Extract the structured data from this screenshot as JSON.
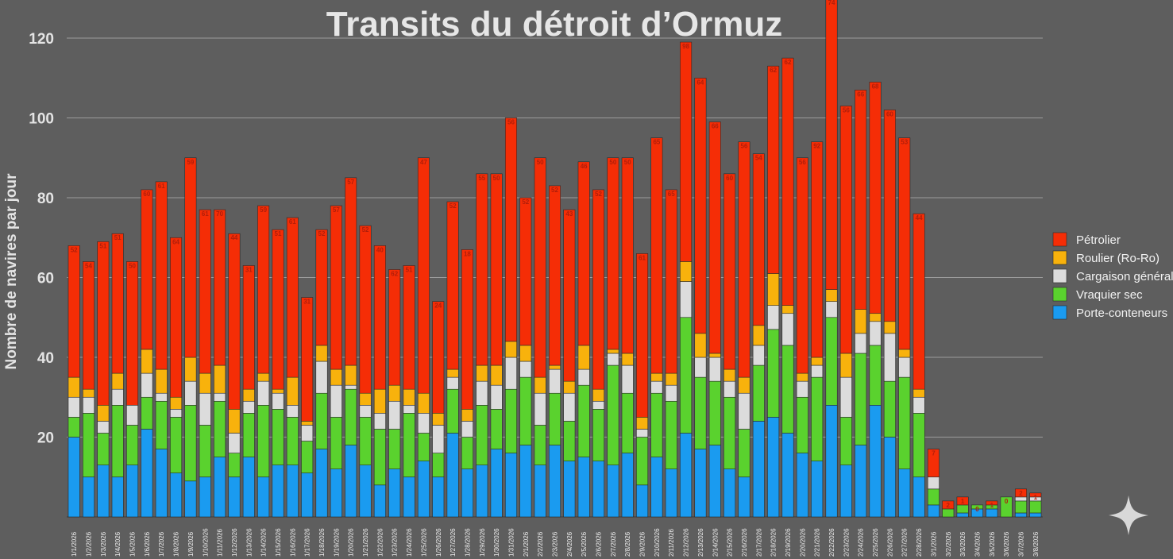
{
  "chart_data": {
    "type": "bar",
    "stacked": true,
    "title": "Transits du détroit d’Ormuz",
    "xlabel": "",
    "ylabel": "Nombre de navires par jour",
    "ylim": [
      0,
      130
    ],
    "yticks": [
      20,
      40,
      60,
      80,
      100,
      120
    ],
    "grid": true,
    "legend_position": "right",
    "categories": [
      "1/1/2026",
      "1/2/2026",
      "1/3/2026",
      "1/4/2026",
      "1/5/2026",
      "1/6/2026",
      "1/7/2026",
      "1/8/2026",
      "1/9/2026",
      "1/10/2026",
      "1/11/2026",
      "1/12/2026",
      "1/13/2026",
      "1/14/2026",
      "1/15/2026",
      "1/16/2026",
      "1/17/2026",
      "1/18/2026",
      "1/19/2026",
      "1/20/2026",
      "1/21/2026",
      "1/22/2026",
      "1/23/2026",
      "1/24/2026",
      "1/25/2026",
      "1/26/2026",
      "1/27/2026",
      "1/28/2026",
      "1/29/2026",
      "1/30/2026",
      "1/31/2026",
      "2/1/2026",
      "2/2/2026",
      "2/3/2026",
      "2/4/2026",
      "2/5/2026",
      "2/6/2026",
      "2/7/2026",
      "2/8/2026",
      "2/9/2026",
      "2/10/2026",
      "2/11/2026",
      "2/12/2026",
      "2/13/2026",
      "2/14/2026",
      "2/15/2026",
      "2/16/2026",
      "2/17/2026",
      "2/18/2026",
      "2/19/2026",
      "2/20/2026",
      "2/21/2026",
      "2/22/2026",
      "2/23/2026",
      "2/24/2026",
      "2/25/2026",
      "2/26/2026",
      "2/27/2026",
      "2/28/2026",
      "3/1/2026",
      "3/2/2026",
      "3/3/2026",
      "3/4/2026",
      "3/5/2026",
      "3/6/2026",
      "3/7/2026",
      "3/8/2026"
    ],
    "totals": [
      68,
      64,
      69,
      71,
      64,
      82,
      84,
      70,
      90,
      77,
      77,
      71,
      63,
      78,
      72,
      75,
      55,
      72,
      78,
      85,
      73,
      68,
      62,
      63,
      90,
      54,
      79,
      67,
      86,
      86,
      100,
      80,
      90,
      83,
      77,
      89,
      82,
      90,
      90,
      66,
      95,
      82,
      119,
      110,
      99,
      86,
      94,
      91,
      113,
      115,
      90,
      94,
      130,
      103,
      107,
      109,
      102,
      95,
      76,
      17,
      4,
      5,
      3,
      4,
      5,
      7,
      6
    ],
    "labels": [
      "52",
      "54",
      "51",
      "51",
      "50",
      "60",
      "61",
      "64",
      "59",
      "61",
      "70",
      "44",
      "31",
      "59",
      "51",
      "61",
      "31",
      "52",
      "57",
      "57",
      "52",
      "40",
      "62",
      "51",
      "47",
      "24",
      "52",
      "18",
      "55",
      "50",
      "56",
      "52",
      "50",
      "52",
      "43",
      "46",
      "52",
      "50",
      "50",
      "61",
      "65",
      "65",
      "98",
      "64",
      "66",
      "60",
      "56",
      "54",
      "62",
      "62",
      "56",
      "92",
      "74",
      "56",
      "66",
      "68",
      "60",
      "53",
      "44",
      "7",
      "2",
      "1",
      "0",
      "1",
      "0",
      "2",
      "1"
    ],
    "series": [
      {
        "name": "Porte-conteneurs",
        "color": "#1a9bf0",
        "values": [
          20,
          10,
          13,
          10,
          13,
          22,
          17,
          11,
          9,
          10,
          15,
          10,
          15,
          10,
          13,
          13,
          11,
          17,
          12,
          18,
          13,
          8,
          12,
          10,
          14,
          10,
          21,
          12,
          13,
          17,
          16,
          18,
          13,
          18,
          14,
          15,
          14,
          13,
          16,
          8,
          15,
          12,
          21,
          17,
          18,
          12,
          10,
          24,
          25,
          21,
          16,
          14,
          28,
          13,
          18,
          28,
          20,
          12,
          10,
          3,
          0,
          1,
          2,
          2,
          0,
          1,
          1
        ]
      },
      {
        "name": "Vraquier sec",
        "color": "#5ad22e",
        "values": [
          5,
          16,
          8,
          18,
          10,
          8,
          12,
          14,
          19,
          13,
          14,
          6,
          11,
          18,
          14,
          12,
          8,
          14,
          13,
          14,
          12,
          14,
          10,
          16,
          7,
          6,
          11,
          8,
          15,
          10,
          16,
          17,
          10,
          13,
          10,
          18,
          13,
          25,
          15,
          12,
          16,
          17,
          29,
          18,
          16,
          18,
          12,
          14,
          22,
          22,
          14,
          21,
          22,
          12,
          23,
          15,
          14,
          23,
          16,
          4,
          2,
          2,
          1,
          1,
          5,
          3,
          3
        ]
      },
      {
        "name": "Cargaison générale",
        "color": "#dcdcdc",
        "values": [
          5,
          4,
          3,
          4,
          5,
          6,
          2,
          2,
          6,
          8,
          2,
          5,
          3,
          6,
          4,
          3,
          4,
          8,
          8,
          1,
          3,
          4,
          7,
          2,
          5,
          7,
          3,
          4,
          6,
          6,
          8,
          4,
          8,
          6,
          7,
          4,
          2,
          3,
          7,
          2,
          3,
          4,
          9,
          5,
          6,
          4,
          9,
          5,
          6,
          8,
          4,
          3,
          4,
          10,
          5,
          6,
          12,
          5,
          4,
          3,
          0,
          0,
          0,
          0,
          0,
          1,
          1
        ]
      },
      {
        "name": "Roulier (Ro-Ro)",
        "color": "#f8b20c",
        "values": [
          5,
          2,
          4,
          4,
          0,
          6,
          6,
          3,
          6,
          5,
          7,
          6,
          3,
          2,
          1,
          7,
          1,
          4,
          4,
          5,
          3,
          6,
          4,
          4,
          5,
          3,
          2,
          3,
          4,
          5,
          4,
          4,
          4,
          1,
          3,
          6,
          3,
          1,
          3,
          3,
          2,
          3,
          5,
          6,
          1,
          3,
          4,
          5,
          8,
          2,
          2,
          2,
          3,
          6,
          6,
          2,
          3,
          2,
          2,
          0,
          0,
          0,
          0,
          0,
          0,
          0,
          0
        ]
      },
      {
        "name": "Pétrolier",
        "color": "#f52d06",
        "values": [
          33,
          32,
          41,
          35,
          36,
          40,
          47,
          40,
          50,
          41,
          39,
          44,
          31,
          42,
          40,
          40,
          31,
          29,
          41,
          47,
          42,
          36,
          29,
          31,
          59,
          28,
          42,
          40,
          48,
          48,
          56,
          37,
          55,
          45,
          43,
          46,
          50,
          48,
          49,
          41,
          59,
          46,
          55,
          64,
          58,
          49,
          59,
          43,
          52,
          62,
          54,
          54,
          73,
          62,
          55,
          58,
          53,
          53,
          44,
          7,
          2,
          2,
          0,
          1,
          0,
          2,
          1
        ]
      }
    ]
  },
  "icons": {
    "watermark": "sparkle-icon"
  }
}
